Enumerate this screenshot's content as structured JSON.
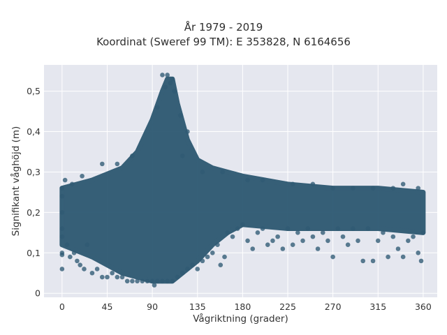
{
  "chart_data": {
    "type": "scatter",
    "title": "År 1979 - 2019",
    "subtitle": "Koordinat (Sweref 99 TM): E 353828, N 6164656",
    "xlabel": "Vågriktning (grader)",
    "ylabel": "Signifikant våghöjd (m)",
    "xlim": [
      -18,
      374
    ],
    "ylim": [
      -0.01,
      0.565
    ],
    "x_ticks": [
      0,
      45,
      90,
      135,
      180,
      225,
      270,
      315,
      360
    ],
    "x_tick_labels": [
      "0",
      "45",
      "90",
      "135",
      "180",
      "225",
      "270",
      "315",
      "360"
    ],
    "y_ticks": [
      0,
      0.1,
      0.2,
      0.3,
      0.4,
      0.5
    ],
    "y_tick_labels": [
      "0",
      "0,1",
      "0,2",
      "0,3",
      "0,4",
      "0,5"
    ],
    "grid": true,
    "marker_color": "#2f5a73",
    "plot_background": "#e5e7ef",
    "envelope": {
      "description_note": "",
      "x": [
        0,
        30,
        60,
        75,
        90,
        100,
        105,
        110,
        115,
        125,
        135,
        150,
        165,
        180,
        225,
        270,
        315,
        360
      ],
      "y_upper": [
        0.26,
        0.28,
        0.31,
        0.35,
        0.43,
        0.5,
        0.53,
        0.53,
        0.47,
        0.38,
        0.33,
        0.31,
        0.3,
        0.29,
        0.27,
        0.26,
        0.26,
        0.25
      ],
      "y_lower": [
        0.12,
        0.09,
        0.05,
        0.04,
        0.03,
        0.03,
        0.03,
        0.03,
        0.04,
        0.06,
        0.08,
        0.12,
        0.15,
        0.17,
        0.16,
        0.16,
        0.16,
        0.15
      ]
    },
    "points": [
      [
        0,
        0.06
      ],
      [
        0,
        0.095
      ],
      [
        0,
        0.1
      ],
      [
        0,
        0.14
      ],
      [
        0,
        0.16
      ],
      [
        0,
        0.2
      ],
      [
        0,
        0.24
      ],
      [
        0,
        0.26
      ],
      [
        3,
        0.28
      ],
      [
        5,
        0.12
      ],
      [
        8,
        0.09
      ],
      [
        12,
        0.1
      ],
      [
        15,
        0.08
      ],
      [
        18,
        0.07
      ],
      [
        22,
        0.06
      ],
      [
        25,
        0.12
      ],
      [
        30,
        0.05
      ],
      [
        35,
        0.06
      ],
      [
        40,
        0.04
      ],
      [
        45,
        0.04
      ],
      [
        50,
        0.05
      ],
      [
        55,
        0.04
      ],
      [
        60,
        0.04
      ],
      [
        65,
        0.03
      ],
      [
        70,
        0.03
      ],
      [
        75,
        0.03
      ],
      [
        80,
        0.03
      ],
      [
        85,
        0.03
      ],
      [
        90,
        0.03
      ],
      [
        92,
        0.02
      ],
      [
        95,
        0.03
      ],
      [
        100,
        0.03
      ],
      [
        105,
        0.03
      ],
      [
        110,
        0.03
      ],
      [
        115,
        0.04
      ],
      [
        120,
        0.05
      ],
      [
        125,
        0.06
      ],
      [
        130,
        0.07
      ],
      [
        135,
        0.06
      ],
      [
        140,
        0.08
      ],
      [
        145,
        0.09
      ],
      [
        150,
        0.1
      ],
      [
        155,
        0.12
      ],
      [
        158,
        0.07
      ],
      [
        162,
        0.09
      ],
      [
        165,
        0.15
      ],
      [
        170,
        0.14
      ],
      [
        175,
        0.16
      ],
      [
        180,
        0.17
      ],
      [
        185,
        0.13
      ],
      [
        190,
        0.11
      ],
      [
        195,
        0.15
      ],
      [
        200,
        0.16
      ],
      [
        205,
        0.12
      ],
      [
        210,
        0.13
      ],
      [
        215,
        0.14
      ],
      [
        220,
        0.11
      ],
      [
        225,
        0.16
      ],
      [
        230,
        0.12
      ],
      [
        235,
        0.15
      ],
      [
        240,
        0.13
      ],
      [
        245,
        0.16
      ],
      [
        250,
        0.14
      ],
      [
        255,
        0.11
      ],
      [
        260,
        0.15
      ],
      [
        265,
        0.13
      ],
      [
        270,
        0.09
      ],
      [
        275,
        0.16
      ],
      [
        280,
        0.14
      ],
      [
        285,
        0.12
      ],
      [
        290,
        0.16
      ],
      [
        295,
        0.13
      ],
      [
        300,
        0.08
      ],
      [
        305,
        0.16
      ],
      [
        310,
        0.08
      ],
      [
        315,
        0.13
      ],
      [
        320,
        0.15
      ],
      [
        325,
        0.09
      ],
      [
        330,
        0.14
      ],
      [
        335,
        0.11
      ],
      [
        340,
        0.09
      ],
      [
        345,
        0.13
      ],
      [
        350,
        0.14
      ],
      [
        355,
        0.1
      ],
      [
        358,
        0.08
      ],
      [
        360,
        0.15
      ],
      [
        100,
        0.54
      ],
      [
        105,
        0.54
      ],
      [
        108,
        0.52
      ],
      [
        110,
        0.53
      ],
      [
        103,
        0.51
      ],
      [
        112,
        0.5
      ],
      [
        40,
        0.32
      ],
      [
        55,
        0.32
      ],
      [
        70,
        0.34
      ],
      [
        120,
        0.34
      ],
      [
        140,
        0.3
      ],
      [
        160,
        0.3
      ],
      [
        185,
        0.28
      ],
      [
        200,
        0.28
      ],
      [
        230,
        0.27
      ],
      [
        250,
        0.27
      ],
      [
        270,
        0.26
      ],
      [
        290,
        0.26
      ],
      [
        310,
        0.26
      ],
      [
        330,
        0.26
      ],
      [
        340,
        0.27
      ],
      [
        355,
        0.26
      ],
      [
        20,
        0.29
      ],
      [
        10,
        0.27
      ],
      [
        125,
        0.4
      ],
      [
        95,
        0.46
      ],
      [
        118,
        0.44
      ]
    ]
  }
}
